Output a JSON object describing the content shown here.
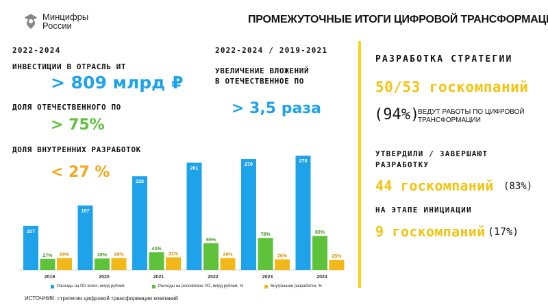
{
  "header": {
    "logo_line1": "Минцифры",
    "logo_line2": "России",
    "title": "ПРОМЕЖУТОЧНЫЕ ИТОГИ ЦИФРОВОЙ ТРАНСФОРМАЦИИ"
  },
  "left": {
    "period": "2022-2024",
    "invest_label": "ИНВЕСТИЦИИ В ОТРАСЛЬ ИТ",
    "invest_value": "> 809 млрд ₽",
    "domestic_label": "ДОЛЯ ОТЕЧЕСТВЕННОГО ПО",
    "domestic_value": "> 75%",
    "internal_label": "ДОЛЯ ВНУТРЕННИХ РАЗРАБОТОК",
    "internal_value": "< 27 %"
  },
  "middle": {
    "period": "2022-2024 / 2019-2021",
    "label_line1": "УВЕЛИЧЕНИЕ ВЛОЖЕНИЙ",
    "label_line2": "В ОТЕЧЕСТВЕННОЕ ПО",
    "value": "> 3,5 раза"
  },
  "right": {
    "heading": "РАЗРАБОТКА СТРАТЕГИИ",
    "companies_total": "50/53 госкомпаний",
    "pct_94": "(94%)",
    "pct_94_text_line1": "ВЕДУТ РАБОТЫ ПО ЦИФРОВОЙ",
    "pct_94_text_line2": "ТРАНСФОРМАЦИИ",
    "approved_label_line1": "УТВЕРДИЛИ / ЗАВЕРШАЮТ",
    "approved_label_line2": "РАЗРАБОТКУ",
    "approved_value": "44 госкомпаний",
    "approved_pct": "(83%)",
    "init_label": "НА ЭТАПЕ ИНИЦИАЦИИ",
    "init_value": "9 госкомпаний",
    "init_pct": "(17%)"
  },
  "source": "ИСТОЧНИК: стратегии цифровой трансформации компаний",
  "colors": {
    "blue": "#1ea3ea",
    "green": "#5ec33a",
    "orange": "#f2b81a",
    "yellow": "#f7d516"
  },
  "chart_data": {
    "type": "bar",
    "categories": [
      "2019",
      "2020",
      "2021",
      "2022",
      "2023",
      "2024"
    ],
    "series": [
      {
        "name": "Расходы на ПО всего, млрд рублей",
        "values": [
          107,
          157,
          228,
          261,
          270,
          278
        ],
        "labels": [
          "107",
          "157",
          "228",
          "261",
          "270",
          "278"
        ]
      },
      {
        "name": "Расходы на российское ПО, млрд рублей, %",
        "values": [
          27,
          28,
          43,
          65,
          78,
          83
        ],
        "labels": [
          "27%",
          "28%",
          "43%",
          "65%",
          "78%",
          "83%"
        ]
      },
      {
        "name": "Внутренние разработки, %",
        "values": [
          29,
          29,
          31,
          29,
          26,
          25
        ],
        "labels": [
          "29%",
          "29%",
          "31%",
          "29%",
          "26%",
          "25%"
        ]
      }
    ],
    "legend_position": "bottom"
  }
}
